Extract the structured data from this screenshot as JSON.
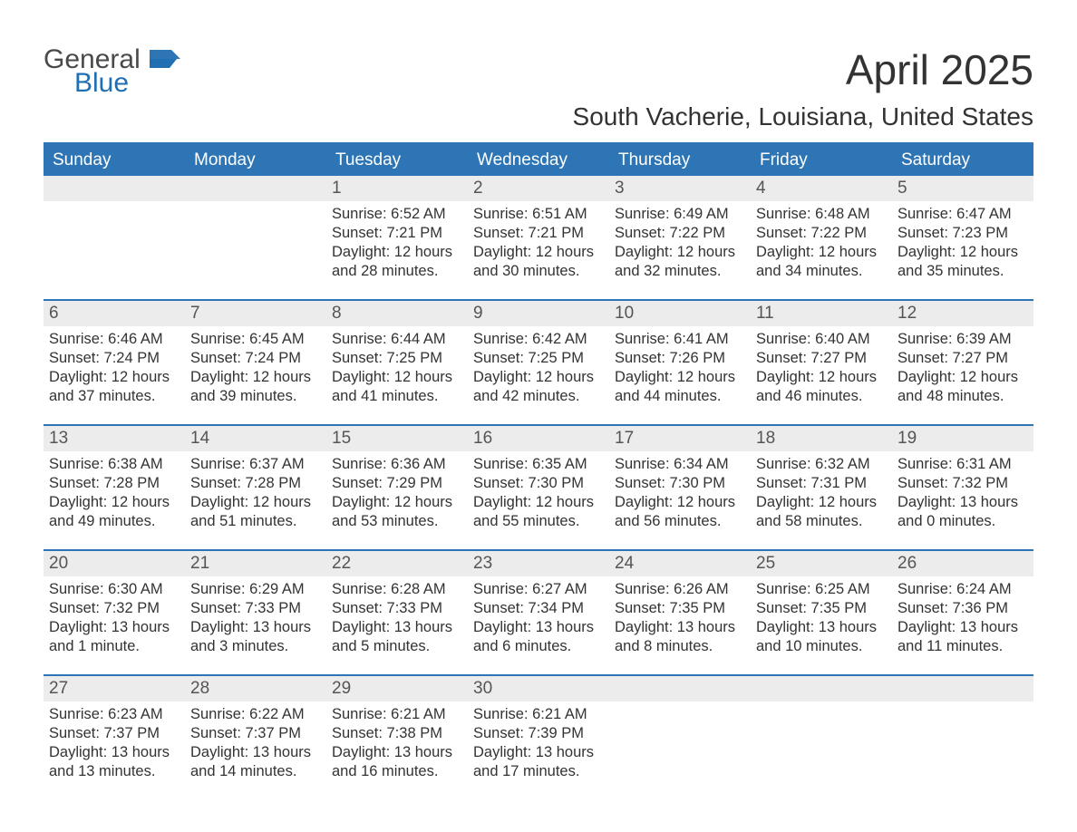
{
  "brand": {
    "general": "General",
    "blue": "Blue"
  },
  "title": "April 2025",
  "subtitle": "South Vacherie, Louisiana, United States",
  "colors": {
    "header_bg": "#2e75b6",
    "header_text": "#ffffff",
    "daynum_bg": "#ececec",
    "daynum_text": "#555555",
    "body_text": "#333333",
    "page_bg": "#ffffff",
    "rule": "#2e75b6",
    "logo_gray": "#4a4a4a",
    "logo_blue": "#1f6fb2"
  },
  "daynames": [
    "Sunday",
    "Monday",
    "Tuesday",
    "Wednesday",
    "Thursday",
    "Friday",
    "Saturday"
  ],
  "weeks": [
    [
      {
        "n": "",
        "sunrise": "",
        "sunset": "",
        "daylight": ""
      },
      {
        "n": "",
        "sunrise": "",
        "sunset": "",
        "daylight": ""
      },
      {
        "n": "1",
        "sunrise": "Sunrise: 6:52 AM",
        "sunset": "Sunset: 7:21 PM",
        "daylight": "Daylight: 12 hours and 28 minutes."
      },
      {
        "n": "2",
        "sunrise": "Sunrise: 6:51 AM",
        "sunset": "Sunset: 7:21 PM",
        "daylight": "Daylight: 12 hours and 30 minutes."
      },
      {
        "n": "3",
        "sunrise": "Sunrise: 6:49 AM",
        "sunset": "Sunset: 7:22 PM",
        "daylight": "Daylight: 12 hours and 32 minutes."
      },
      {
        "n": "4",
        "sunrise": "Sunrise: 6:48 AM",
        "sunset": "Sunset: 7:22 PM",
        "daylight": "Daylight: 12 hours and 34 minutes."
      },
      {
        "n": "5",
        "sunrise": "Sunrise: 6:47 AM",
        "sunset": "Sunset: 7:23 PM",
        "daylight": "Daylight: 12 hours and 35 minutes."
      }
    ],
    [
      {
        "n": "6",
        "sunrise": "Sunrise: 6:46 AM",
        "sunset": "Sunset: 7:24 PM",
        "daylight": "Daylight: 12 hours and 37 minutes."
      },
      {
        "n": "7",
        "sunrise": "Sunrise: 6:45 AM",
        "sunset": "Sunset: 7:24 PM",
        "daylight": "Daylight: 12 hours and 39 minutes."
      },
      {
        "n": "8",
        "sunrise": "Sunrise: 6:44 AM",
        "sunset": "Sunset: 7:25 PM",
        "daylight": "Daylight: 12 hours and 41 minutes."
      },
      {
        "n": "9",
        "sunrise": "Sunrise: 6:42 AM",
        "sunset": "Sunset: 7:25 PM",
        "daylight": "Daylight: 12 hours and 42 minutes."
      },
      {
        "n": "10",
        "sunrise": "Sunrise: 6:41 AM",
        "sunset": "Sunset: 7:26 PM",
        "daylight": "Daylight: 12 hours and 44 minutes."
      },
      {
        "n": "11",
        "sunrise": "Sunrise: 6:40 AM",
        "sunset": "Sunset: 7:27 PM",
        "daylight": "Daylight: 12 hours and 46 minutes."
      },
      {
        "n": "12",
        "sunrise": "Sunrise: 6:39 AM",
        "sunset": "Sunset: 7:27 PM",
        "daylight": "Daylight: 12 hours and 48 minutes."
      }
    ],
    [
      {
        "n": "13",
        "sunrise": "Sunrise: 6:38 AM",
        "sunset": "Sunset: 7:28 PM",
        "daylight": "Daylight: 12 hours and 49 minutes."
      },
      {
        "n": "14",
        "sunrise": "Sunrise: 6:37 AM",
        "sunset": "Sunset: 7:28 PM",
        "daylight": "Daylight: 12 hours and 51 minutes."
      },
      {
        "n": "15",
        "sunrise": "Sunrise: 6:36 AM",
        "sunset": "Sunset: 7:29 PM",
        "daylight": "Daylight: 12 hours and 53 minutes."
      },
      {
        "n": "16",
        "sunrise": "Sunrise: 6:35 AM",
        "sunset": "Sunset: 7:30 PM",
        "daylight": "Daylight: 12 hours and 55 minutes."
      },
      {
        "n": "17",
        "sunrise": "Sunrise: 6:34 AM",
        "sunset": "Sunset: 7:30 PM",
        "daylight": "Daylight: 12 hours and 56 minutes."
      },
      {
        "n": "18",
        "sunrise": "Sunrise: 6:32 AM",
        "sunset": "Sunset: 7:31 PM",
        "daylight": "Daylight: 12 hours and 58 minutes."
      },
      {
        "n": "19",
        "sunrise": "Sunrise: 6:31 AM",
        "sunset": "Sunset: 7:32 PM",
        "daylight": "Daylight: 13 hours and 0 minutes."
      }
    ],
    [
      {
        "n": "20",
        "sunrise": "Sunrise: 6:30 AM",
        "sunset": "Sunset: 7:32 PM",
        "daylight": "Daylight: 13 hours and 1 minute."
      },
      {
        "n": "21",
        "sunrise": "Sunrise: 6:29 AM",
        "sunset": "Sunset: 7:33 PM",
        "daylight": "Daylight: 13 hours and 3 minutes."
      },
      {
        "n": "22",
        "sunrise": "Sunrise: 6:28 AM",
        "sunset": "Sunset: 7:33 PM",
        "daylight": "Daylight: 13 hours and 5 minutes."
      },
      {
        "n": "23",
        "sunrise": "Sunrise: 6:27 AM",
        "sunset": "Sunset: 7:34 PM",
        "daylight": "Daylight: 13 hours and 6 minutes."
      },
      {
        "n": "24",
        "sunrise": "Sunrise: 6:26 AM",
        "sunset": "Sunset: 7:35 PM",
        "daylight": "Daylight: 13 hours and 8 minutes."
      },
      {
        "n": "25",
        "sunrise": "Sunrise: 6:25 AM",
        "sunset": "Sunset: 7:35 PM",
        "daylight": "Daylight: 13 hours and 10 minutes."
      },
      {
        "n": "26",
        "sunrise": "Sunrise: 6:24 AM",
        "sunset": "Sunset: 7:36 PM",
        "daylight": "Daylight: 13 hours and 11 minutes."
      }
    ],
    [
      {
        "n": "27",
        "sunrise": "Sunrise: 6:23 AM",
        "sunset": "Sunset: 7:37 PM",
        "daylight": "Daylight: 13 hours and 13 minutes."
      },
      {
        "n": "28",
        "sunrise": "Sunrise: 6:22 AM",
        "sunset": "Sunset: 7:37 PM",
        "daylight": "Daylight: 13 hours and 14 minutes."
      },
      {
        "n": "29",
        "sunrise": "Sunrise: 6:21 AM",
        "sunset": "Sunset: 7:38 PM",
        "daylight": "Daylight: 13 hours and 16 minutes."
      },
      {
        "n": "30",
        "sunrise": "Sunrise: 6:21 AM",
        "sunset": "Sunset: 7:39 PM",
        "daylight": "Daylight: 13 hours and 17 minutes."
      },
      {
        "n": "",
        "sunrise": "",
        "sunset": "",
        "daylight": ""
      },
      {
        "n": "",
        "sunrise": "",
        "sunset": "",
        "daylight": ""
      },
      {
        "n": "",
        "sunrise": "",
        "sunset": "",
        "daylight": ""
      }
    ]
  ]
}
